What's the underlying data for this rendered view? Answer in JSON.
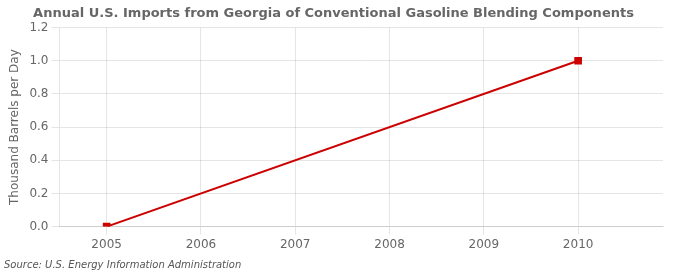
{
  "chart_data": {
    "type": "line",
    "title": "Annual U.S. Imports from Georgia of Conventional Gasoline Blending Components",
    "y_label": "Thousand Barrels per Day",
    "source": "Source: U.S. Energy Information Administration",
    "x": [
      2005,
      2010
    ],
    "values": [
      0,
      1
    ],
    "color": "#cc0000",
    "marker": "square",
    "xlim": [
      2004.5,
      2010.9
    ],
    "xticks": [
      2005,
      2006,
      2007,
      2008,
      2009,
      2010
    ],
    "ylim": [
      0,
      1.2
    ],
    "yticks": [
      {
        "value": 0,
        "label": "0.0"
      },
      0.2,
      0.4,
      0.6,
      0.8,
      {
        "value": 1,
        "label": "1.0"
      },
      1.2
    ],
    "grid": true
  }
}
